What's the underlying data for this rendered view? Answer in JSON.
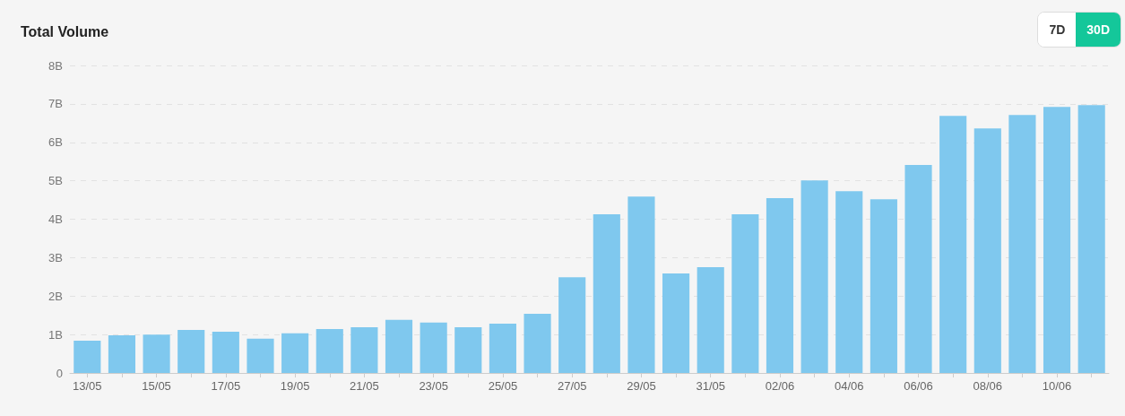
{
  "chart_data": {
    "type": "bar",
    "title": "Total Volume",
    "annotations": [
      "7D",
      "30D"
    ],
    "categories": [
      "13/05",
      null,
      "15/05",
      null,
      "17/05",
      null,
      "19/05",
      null,
      "21/05",
      null,
      "23/05",
      null,
      "25/05",
      null,
      "27/05",
      null,
      "29/05",
      null,
      "31/05",
      null,
      "02/06",
      null,
      "04/06",
      null,
      "06/06",
      null,
      "08/06",
      null,
      "10/06",
      null
    ],
    "values": [
      0.84,
      0.98,
      1.0,
      1.12,
      1.07,
      0.89,
      1.03,
      1.14,
      1.19,
      1.38,
      1.31,
      1.19,
      1.28,
      1.54,
      2.49,
      4.13,
      4.59,
      2.59,
      2.75,
      4.13,
      4.55,
      5.01,
      4.73,
      4.52,
      5.41,
      6.69,
      6.36,
      6.71,
      6.92,
      6.97
    ],
    "color": "#7fc8ee",
    "ylim": [
      0,
      8
    ],
    "yticks": [
      {
        "value": 0,
        "label": "0"
      },
      {
        "value": 1,
        "label": "1B"
      },
      {
        "value": 2,
        "label": "2B"
      },
      {
        "value": 3,
        "label": "3B"
      },
      {
        "value": 4,
        "label": "4B"
      },
      {
        "value": 5,
        "label": "5B"
      },
      {
        "value": 6,
        "label": "6B"
      },
      {
        "value": 7,
        "label": "7B"
      },
      {
        "value": 8,
        "label": "8B"
      }
    ],
    "grid": "y"
  }
}
